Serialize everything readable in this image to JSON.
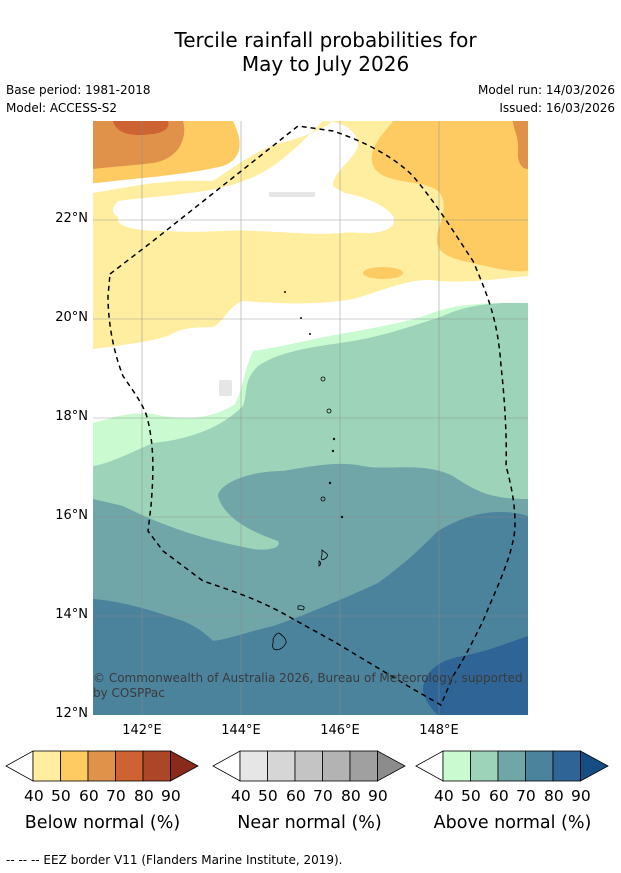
{
  "title_line1": "Tercile rainfall probabilities for",
  "title_line2": "May to July 2026",
  "base_period": "Base period: 1981-2018",
  "model": "Model: ACCESS-S2",
  "model_run": "Model run: 14/03/2026",
  "issued": "Issued: 16/03/2026",
  "copyright_line1": "© Commonwealth of Australia 2026, Bureau of Meteorology, supported",
  "copyright_line2": "by COSPPac",
  "lat_labels": [
    "22°N",
    "20°N",
    "18°N",
    "16°N",
    "14°N",
    "12°N"
  ],
  "lon_labels": [
    "142°E",
    "144°E",
    "146°E",
    "148°E"
  ],
  "legends": [
    {
      "title": "Below normal (%)",
      "ticks": [
        "40",
        "50",
        "60",
        "70",
        "80",
        "90"
      ],
      "colors": [
        "#ffffff",
        "#ffeda0",
        "#fecb63",
        "#e0924b",
        "#cd6332",
        "#ab4627",
        "#8a2a1a"
      ]
    },
    {
      "title": "Near normal (%)",
      "ticks": [
        "40",
        "50",
        "60",
        "70",
        "80",
        "90"
      ],
      "colors": [
        "#ffffff",
        "#e6e6e6",
        "#d6d6d6",
        "#c4c4c4",
        "#b3b3b3",
        "#a0a0a0",
        "#8c8c8c"
      ]
    },
    {
      "title": "Above normal (%)",
      "ticks": [
        "40",
        "50",
        "60",
        "70",
        "80",
        "90"
      ],
      "colors": [
        "#ffffff",
        "#cafbd0",
        "#9dd3b9",
        "#71a6a8",
        "#4b839d",
        "#2f6496",
        "#174d85"
      ]
    }
  ],
  "footer": "--  --  -- EEZ border V11 (Flanders Marine Institute, 2019)."
}
